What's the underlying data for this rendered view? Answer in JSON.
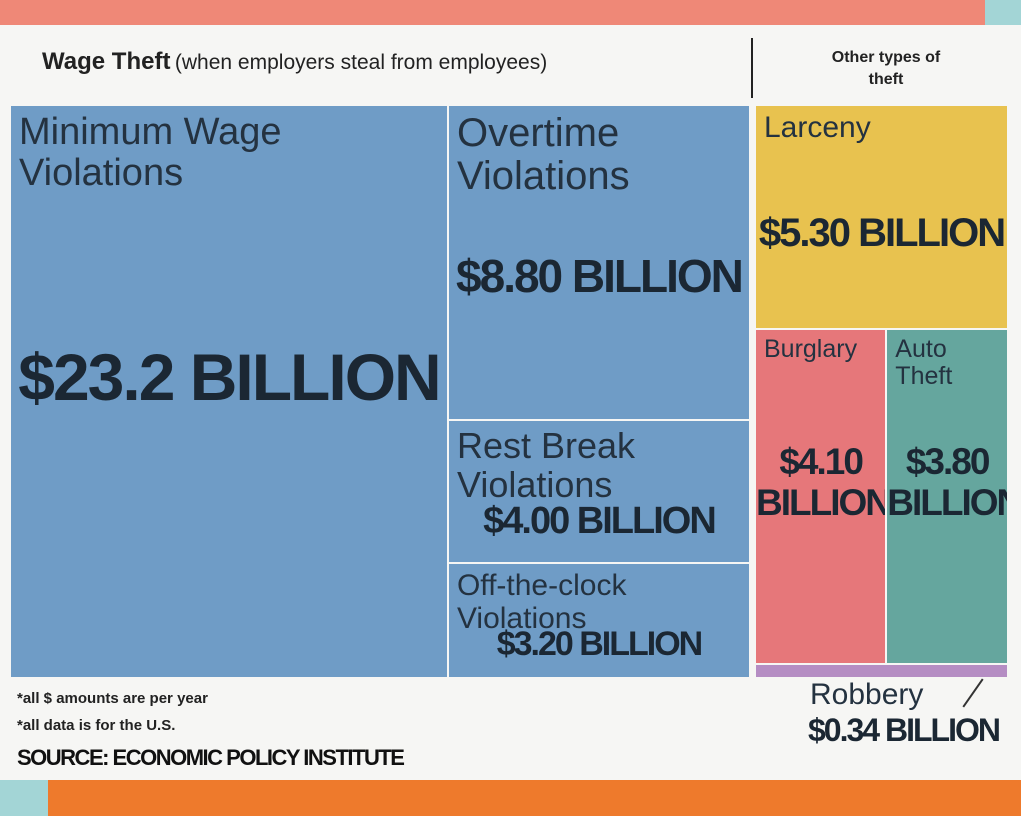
{
  "chart_data": {
    "type": "treemap",
    "title": "Wage Theft",
    "subtitle": "(when employers steal from employees)",
    "groups": [
      {
        "categories": [
          "Minimum Wage Violations",
          "Overtime Violations",
          "Rest Break Violations",
          "Off-the-clock Violations"
        ],
        "values": [
          23.2,
          8.8,
          4.0,
          3.2
        ],
        "value_labels": [
          "$23.2 BILLION",
          "$8.80 BILLION",
          "$4.00 BILLION",
          "$3.20 BILLION"
        ],
        "colors": [
          "#6f9cc6",
          "#6f9cc6",
          "#6f9cc6",
          "#6f9cc6"
        ]
      },
      {
        "name": "Other types of theft",
        "categories": [
          "Larceny",
          "Burglary",
          "Auto Theft",
          "Robbery"
        ],
        "values": [
          5.3,
          4.1,
          3.8,
          0.34
        ],
        "value_labels": [
          "$5.30 BILLION",
          "$4.10 BILLION",
          "$3.80 BILLION",
          "$0.34 BILLION"
        ],
        "colors": [
          "#e8c24f",
          "#e6777a",
          "#65a69e",
          "#b58dc3"
        ]
      }
    ],
    "notes": [
      "*all $ amounts are per year",
      "*all data is for the U.S."
    ],
    "source": "SOURCE: ECONOMIC POLICY INSTITUTE"
  }
}
